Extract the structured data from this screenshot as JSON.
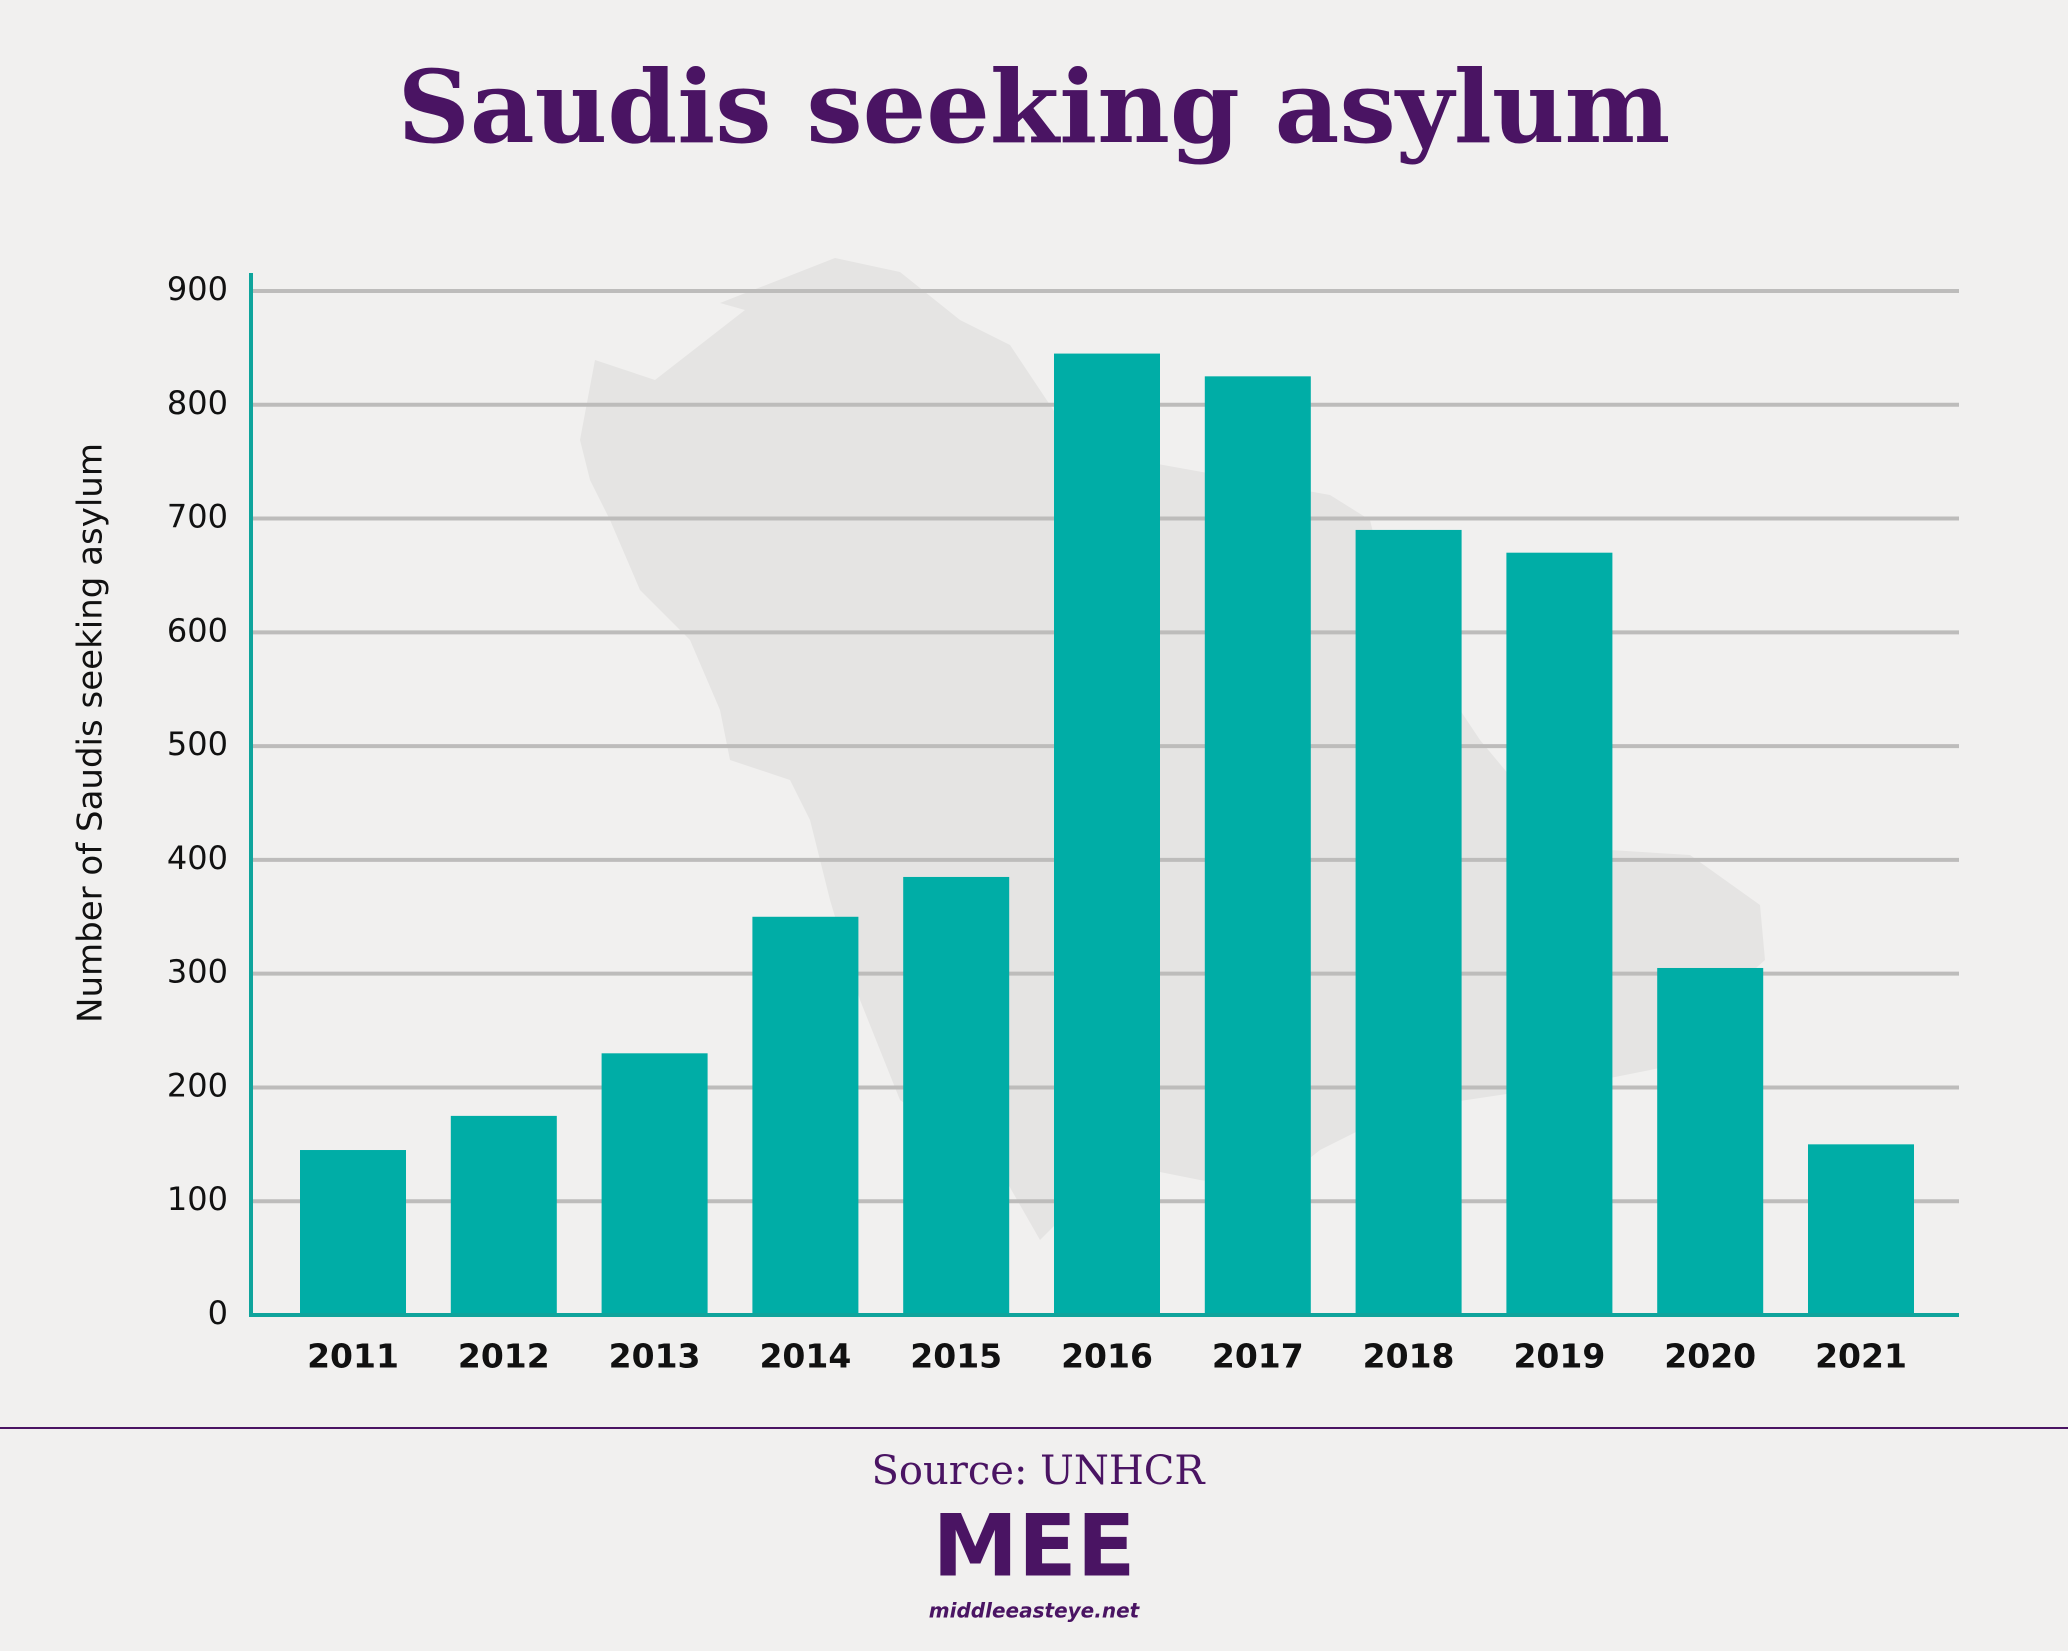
{
  "chart_data": {
    "type": "bar",
    "title": "Saudis seeking asylum",
    "y_label": "Number of Saudis seeking asylum",
    "categories": [
      "2011",
      "2012",
      "2013",
      "2014",
      "2015",
      "2016",
      "2017",
      "2018",
      "2019",
      "2020",
      "2021"
    ],
    "values": [
      145,
      175,
      230,
      350,
      385,
      845,
      825,
      690,
      670,
      305,
      150
    ],
    "color": "#00ada6",
    "ylim": [
      0,
      900
    ],
    "yticks": [
      0,
      100,
      200,
      300,
      400,
      500,
      600,
      700,
      800,
      900
    ],
    "grid": true,
    "source": "Source: UNHCR",
    "logo": "MEE",
    "website": "middleeasteye.net"
  }
}
